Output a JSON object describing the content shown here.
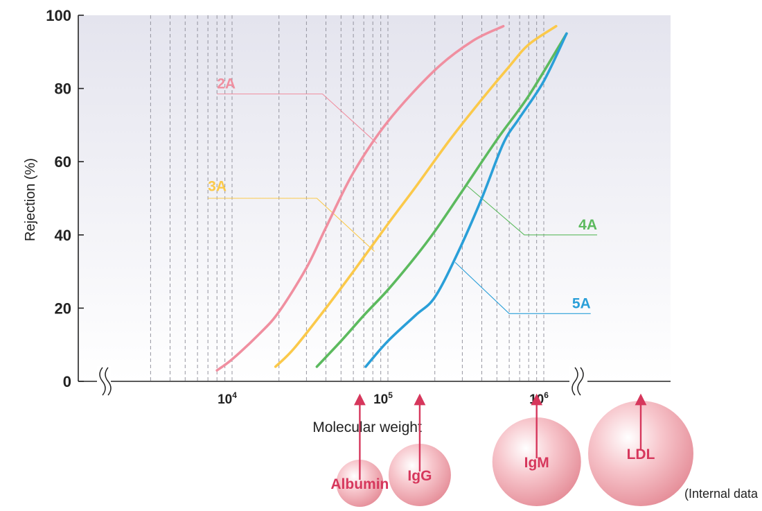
{
  "chart_data": {
    "type": "line",
    "ylabel": "Rejection  (%)",
    "xlabel": "Molecular weight",
    "x_scale": "log",
    "xlim": [
      2000,
      2500000
    ],
    "ylim": [
      0,
      100
    ],
    "yticks": [
      {
        "value": 0,
        "label": "0"
      },
      {
        "value": 20,
        "label": "20"
      },
      {
        "value": 40,
        "label": "40"
      },
      {
        "value": 60,
        "label": "60"
      },
      {
        "value": 80,
        "label": "80"
      },
      {
        "value": 100,
        "label": "100"
      }
    ],
    "xticks": [
      {
        "value": 10000,
        "base": "10",
        "exp": "4"
      },
      {
        "value": 100000,
        "base": "10",
        "exp": "5"
      },
      {
        "value": 1000000,
        "base": "10",
        "exp": "6"
      }
    ],
    "series": [
      {
        "name": "2A",
        "color": "#f08fa0",
        "x": [
          8000,
          10000,
          15000,
          20000,
          30000,
          40000,
          60000,
          100000,
          200000,
          350000,
          550000
        ],
        "y": [
          3,
          6,
          13,
          19,
          31,
          42,
          57,
          71,
          85,
          93,
          97
        ]
      },
      {
        "name": "3A",
        "color": "#fbc94a",
        "x": [
          19000,
          25000,
          40000,
          60000,
          100000,
          150000,
          250000,
          400000,
          600000,
          800000,
          1200000
        ],
        "y": [
          4,
          9,
          20,
          30,
          43,
          53,
          66,
          77,
          86,
          92,
          97
        ]
      },
      {
        "name": "4A",
        "color": "#5cba5e",
        "x": [
          35000,
          50000,
          70000,
          100000,
          150000,
          200000,
          300000,
          500000,
          800000,
          1400000
        ],
        "y": [
          4,
          11,
          18,
          25,
          34,
          41,
          52,
          66,
          78,
          95
        ]
      },
      {
        "name": "5A",
        "color": "#2a9fd8",
        "x": [
          72000,
          100000,
          150000,
          200000,
          280000,
          400000,
          550000,
          700000,
          1000000,
          1400000
        ],
        "y": [
          4,
          11,
          18,
          23,
          35,
          50,
          65,
          72,
          82,
          95
        ]
      }
    ],
    "series_labels": [
      {
        "name": "2A",
        "color": "#f08fa0",
        "label_at": [
          8000,
          80
        ],
        "leader": [
          [
            8000,
            78.5
          ],
          [
            38000,
            78.5
          ],
          [
            85000,
            65
          ]
        ]
      },
      {
        "name": "3A",
        "color": "#fbc94a",
        "label_at": [
          7000,
          52
        ],
        "leader": [
          [
            7000,
            50
          ],
          [
            35000,
            50
          ],
          [
            82000,
            35.5
          ]
        ]
      },
      {
        "name": "4A",
        "color": "#5cba5e",
        "label_at": [
          2200000,
          41.5
        ],
        "leader": [
          [
            2200000,
            40
          ],
          [
            750000,
            40
          ],
          [
            320000,
            53.5
          ]
        ]
      },
      {
        "name": "5A",
        "color": "#2a9fd8",
        "label_at": [
          2000000,
          20
        ],
        "leader": [
          [
            2000000,
            18.5
          ],
          [
            600000,
            18.5
          ],
          [
            270000,
            32.5
          ]
        ]
      }
    ]
  },
  "molecules": [
    {
      "label": "Albumin",
      "mw": 66000,
      "size": "small"
    },
    {
      "label": "IgG",
      "mw": 160000,
      "size": "medium"
    },
    {
      "label": "IgM",
      "mw": 900000,
      "size": "large"
    },
    {
      "label": "LDL",
      "mw": 3000000,
      "size": "xlarge"
    }
  ],
  "molecule_color": "#d6375c",
  "footnote": "(Internal data"
}
